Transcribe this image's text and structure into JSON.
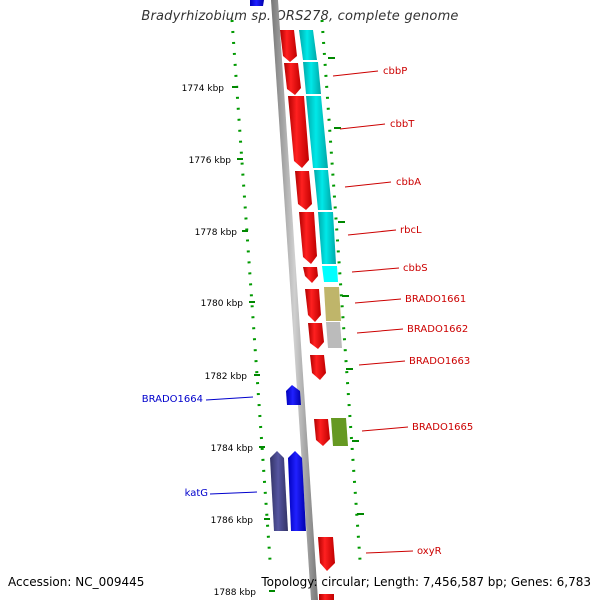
{
  "title": "Bradyrhizobium sp. ORS278, complete genome",
  "accession": "Accession: NC_009445",
  "summary": "Topology: circular; Length: 7,456,587 bp; Genes: 6,783",
  "axis": {
    "labels": [
      "1774 kbp",
      "1776 kbp",
      "1778 kbp",
      "1780 kbp",
      "1782 kbp",
      "1784 kbp",
      "1786 kbp",
      "1788 kbp"
    ]
  },
  "genes": {
    "forward_labels": [
      "cbbP",
      "cbbT",
      "cbbA",
      "rbcL",
      "cbbS",
      "BRADO1661",
      "BRADO1662",
      "BRADO1663",
      "BRADO1665",
      "oxyR"
    ],
    "reverse_labels": [
      "BRADO1664",
      "katG"
    ]
  },
  "colors": {
    "forward_label": "#cc0000",
    "reverse_label": "#0000cc",
    "forward_gene": "#ff0000",
    "reverse_gene": "#0000ff",
    "backbone": "#888888",
    "ticks": "#008800",
    "cyan_cog": "#00d8d8",
    "olive_cog": "#bfb56a",
    "grey_cog": "#bbbbbb",
    "green_cog": "#669922",
    "navy_cog": "#444488"
  }
}
